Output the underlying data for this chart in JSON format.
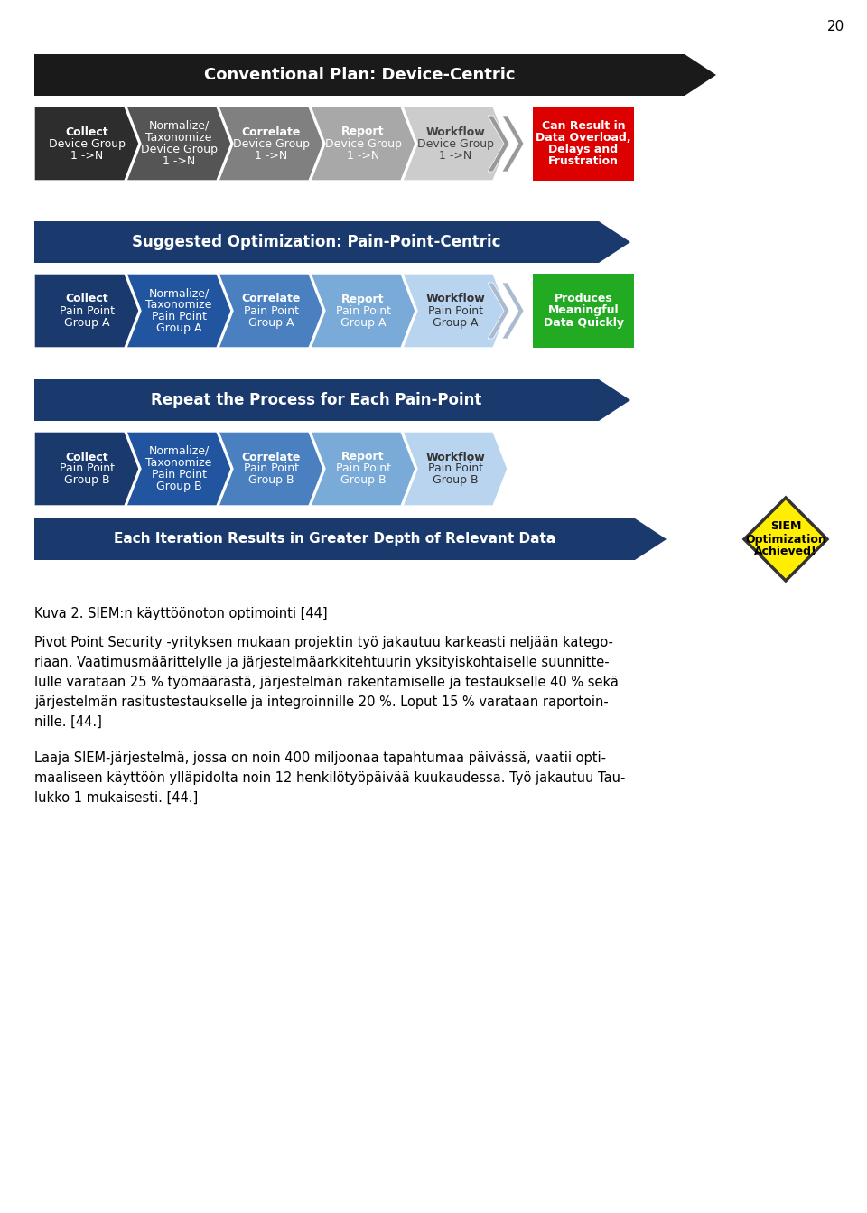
{
  "page_number": "20",
  "bg_color": "#ffffff",
  "section1_title": "Conventional Plan: Device-Centric",
  "section1_boxes": [
    {
      "lines": [
        "Collect",
        "Device Group",
        "1 ->N"
      ],
      "bold_idx": 0,
      "color": "#2d2d2d",
      "text_color": "#ffffff"
    },
    {
      "lines": [
        "Normalize/",
        "Taxonomize",
        "Device Group",
        "1 ->N"
      ],
      "bold_idx": -1,
      "color": "#555555",
      "text_color": "#ffffff"
    },
    {
      "lines": [
        "Correlate",
        "Device Group",
        "1 ->N"
      ],
      "bold_idx": 0,
      "color": "#808080",
      "text_color": "#ffffff"
    },
    {
      "lines": [
        "Report",
        "Device Group",
        "1 ->N"
      ],
      "bold_idx": 0,
      "color": "#a8a8a8",
      "text_color": "#ffffff"
    },
    {
      "lines": [
        "Workflow",
        "Device Group",
        "1 ->N"
      ],
      "bold_idx": 0,
      "color": "#cccccc",
      "text_color": "#444444"
    }
  ],
  "section1_result": {
    "lines": [
      "Can Result in",
      "Data Overload,",
      "Delays and",
      "Frustration"
    ],
    "color": "#dd0000",
    "text_color": "#ffffff"
  },
  "section2_title": "Suggested Optimization: Pain-Point-Centric",
  "section2_boxes": [
    {
      "lines": [
        "Collect",
        "Pain Point",
        "Group A"
      ],
      "bold_idx": 0,
      "color": "#1a3a6e",
      "text_color": "#ffffff"
    },
    {
      "lines": [
        "Normalize/",
        "Taxonomize",
        "Pain Point",
        "Group A"
      ],
      "bold_idx": -1,
      "color": "#2255a0",
      "text_color": "#ffffff"
    },
    {
      "lines": [
        "Correlate",
        "Pain Point",
        "Group A"
      ],
      "bold_idx": 0,
      "color": "#4a7fc0",
      "text_color": "#ffffff"
    },
    {
      "lines": [
        "Report",
        "Pain Point",
        "Group A"
      ],
      "bold_idx": 0,
      "color": "#7aaad8",
      "text_color": "#ffffff"
    },
    {
      "lines": [
        "Workflow",
        "Pain Point",
        "Group A"
      ],
      "bold_idx": 0,
      "color": "#b8d4ee",
      "text_color": "#333333"
    }
  ],
  "section2_result": {
    "lines": [
      "Produces",
      "Meaningful",
      "Data Quickly"
    ],
    "color": "#22aa22",
    "text_color": "#ffffff"
  },
  "section3_title": "Repeat the Process for Each Pain-Point",
  "section3_boxes": [
    {
      "lines": [
        "Collect",
        "Pain Point",
        "Group B"
      ],
      "bold_idx": 0,
      "color": "#1a3a6e",
      "text_color": "#ffffff"
    },
    {
      "lines": [
        "Normalize/",
        "Taxonomize",
        "Pain Point",
        "Group B"
      ],
      "bold_idx": -1,
      "color": "#2255a0",
      "text_color": "#ffffff"
    },
    {
      "lines": [
        "Correlate",
        "Pain Point",
        "Group B"
      ],
      "bold_idx": 0,
      "color": "#4a7fc0",
      "text_color": "#ffffff"
    },
    {
      "lines": [
        "Report",
        "Pain Point",
        "Group B"
      ],
      "bold_idx": 0,
      "color": "#7aaad8",
      "text_color": "#ffffff"
    },
    {
      "lines": [
        "Workflow",
        "Pain Point",
        "Group B"
      ],
      "bold_idx": 0,
      "color": "#b8d4ee",
      "text_color": "#333333"
    }
  ],
  "section4_title": "Each Iteration Results in Greater Depth of Relevant Data",
  "section4_diamond": {
    "lines": [
      "SIEM",
      "Optimization",
      "Achieved!"
    ],
    "fill": "#ffee00",
    "edge": "#333333",
    "text_color": "#000000"
  },
  "caption": "Kuva 2. SIEM:n käyttöönoton optimointi [44]",
  "para1_lines": [
    "Pivot Point Security -yrityksen mukaan projektin työ jakautuu karkeasti neljään katego-",
    "riaan. Vaatimusmäärittelylle ja järjestelmäarkkitehtuurin yksityiskohtaiselle suunnitte-",
    "lulle varataan 25 % työmäärästä, järjestelmän rakentamiselle ja testaukselle 40 % sekä",
    "järjestelmän rasitustestaukselle ja integroinnille 20 %. Loput 15 % varataan raportoin-",
    "nille. [44.]"
  ],
  "para2_lines": [
    "Laaja SIEM-järjestelmä, jossa on noin 400 miljoonaa tapahtumaa päivässä, vaatii opti-",
    "maaliseen käyttöön ylläpidolta noin 12 henkilötyöpäivää kuukaudessa. Työ jakautuu Tau-",
    "lukko 1 mukaisesti. [44.]"
  ]
}
